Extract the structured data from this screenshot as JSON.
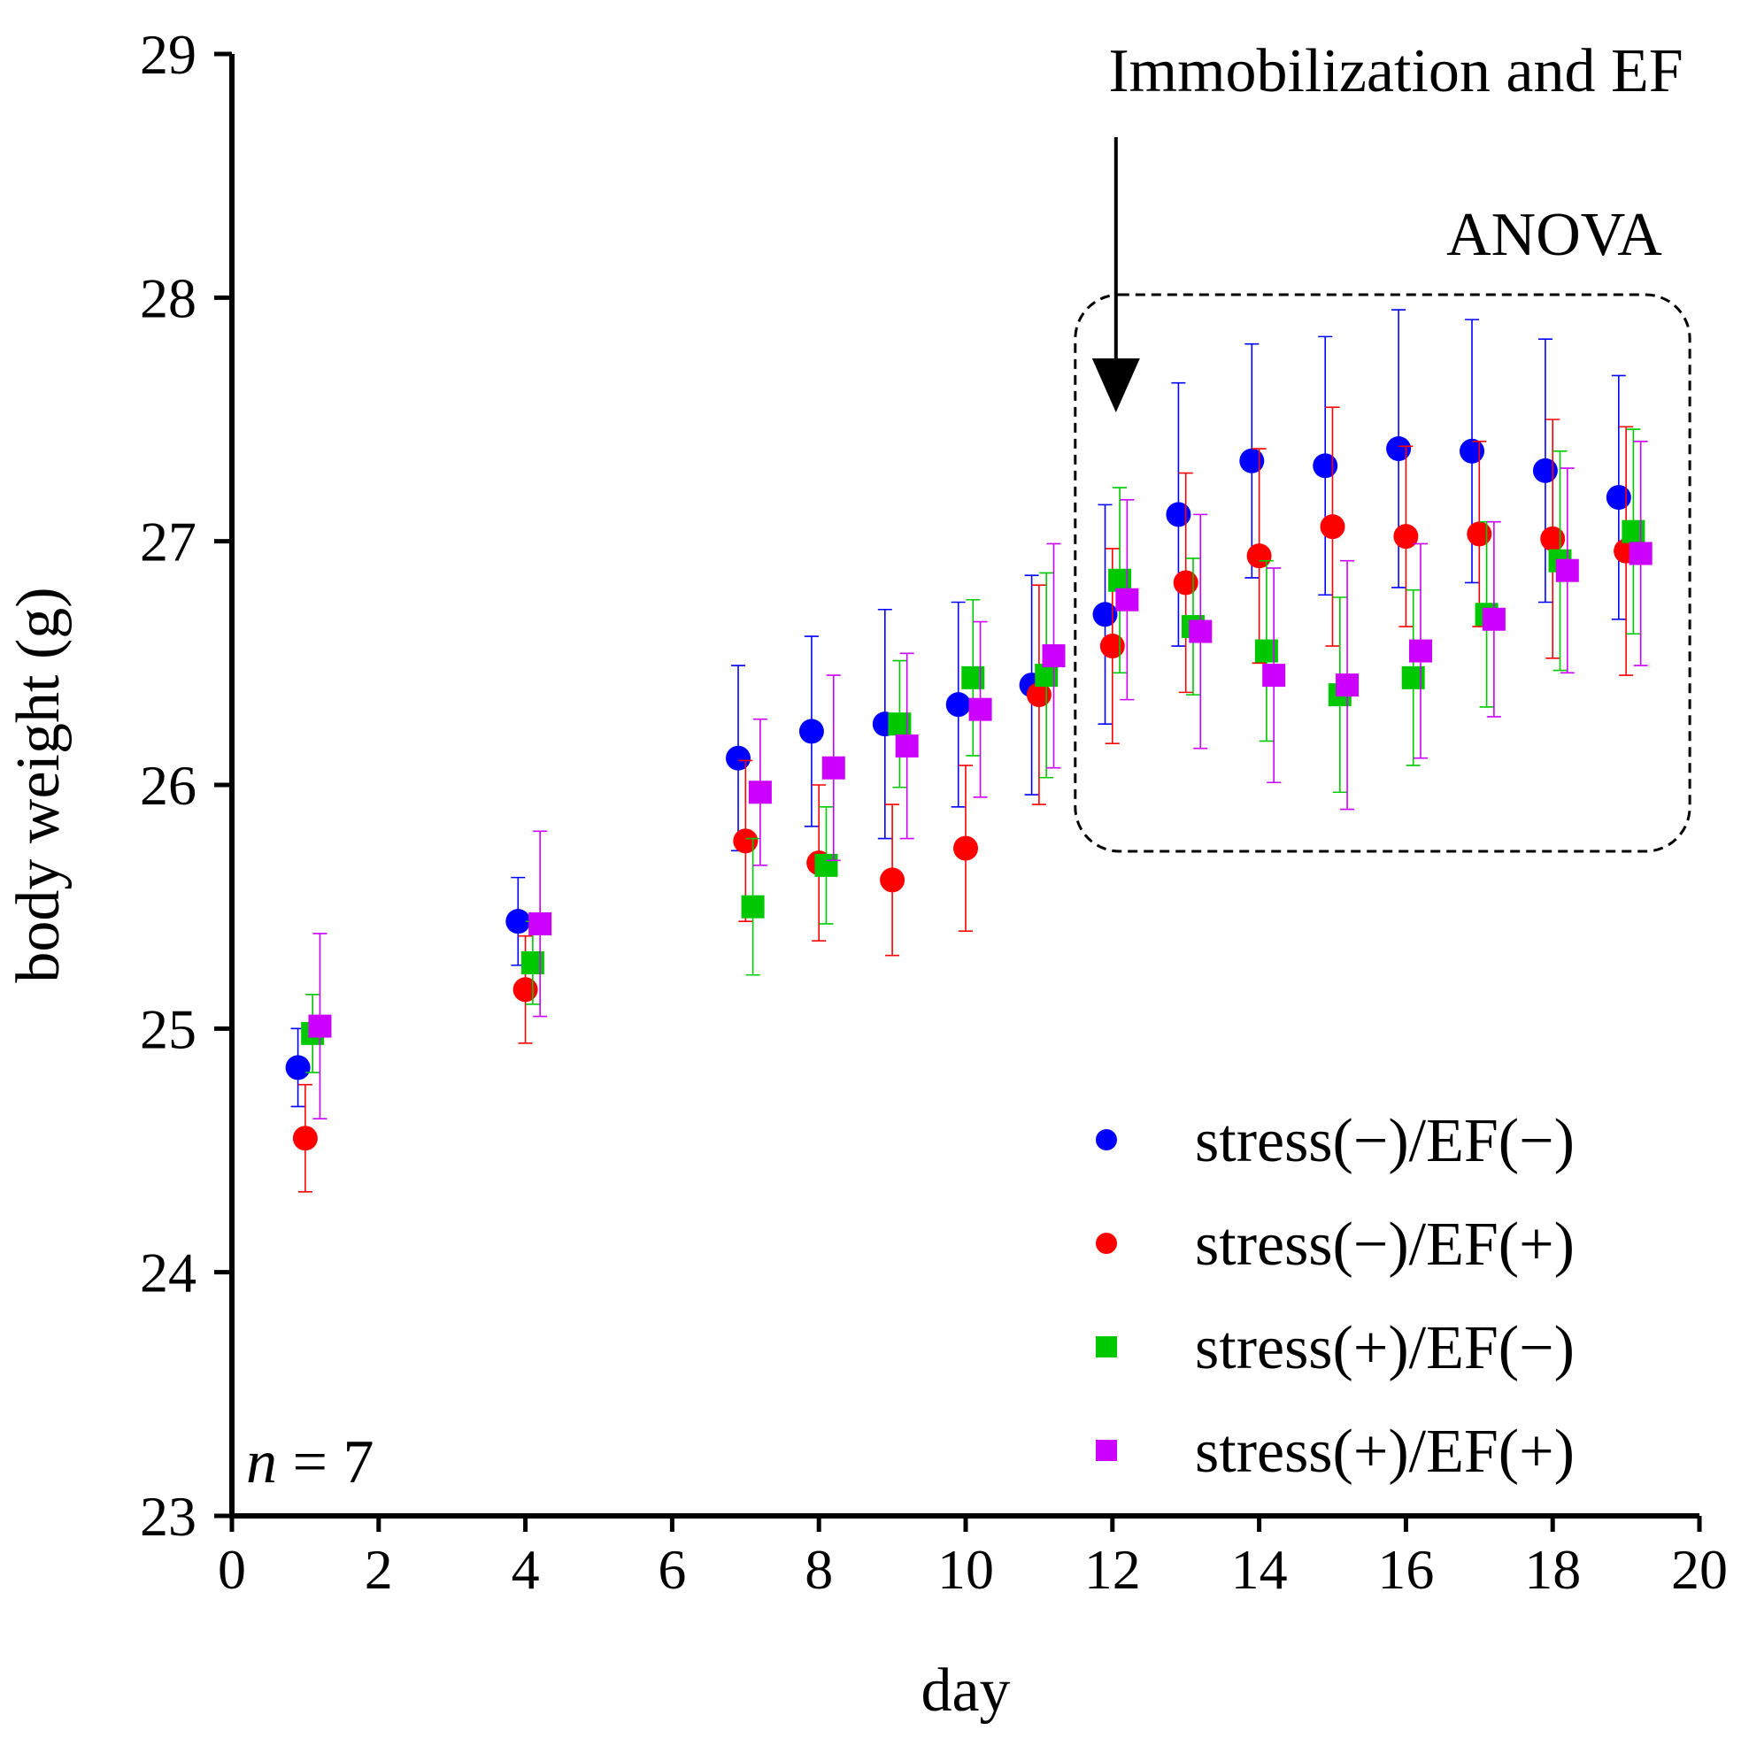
{
  "chart_data": {
    "type": "scatter",
    "title": "",
    "xlabel": "day",
    "ylabel": "body weight (g)",
    "xlim": [
      0,
      20
    ],
    "ylim": [
      23,
      29
    ],
    "xticks": [
      0,
      2,
      4,
      6,
      8,
      10,
      12,
      14,
      16,
      18,
      20
    ],
    "yticks": [
      23,
      24,
      25,
      26,
      27,
      28,
      29
    ],
    "grid": false,
    "legend_position": "bottom-right",
    "annotations": {
      "arrow_label": "Immobilization and EF",
      "arrow_day": 12,
      "box_label": "ANOVA",
      "box_days": [
        12,
        19
      ],
      "n_label_var": "n",
      "n_label_rest": " = 7"
    },
    "series": [
      {
        "name": "stress(−)/EF(−)",
        "color": "#0000ff",
        "marker": "circle",
        "offset": -0.1,
        "x": [
          1,
          4,
          7,
          8,
          9,
          10,
          11,
          12,
          13,
          14,
          15,
          16,
          17,
          18,
          19
        ],
        "y": [
          24.84,
          25.44,
          26.11,
          26.22,
          26.25,
          26.33,
          26.41,
          26.7,
          27.11,
          27.33,
          27.31,
          27.38,
          27.37,
          27.29,
          27.18
        ],
        "err": [
          0.16,
          0.18,
          0.38,
          0.39,
          0.47,
          0.42,
          0.45,
          0.45,
          0.54,
          0.48,
          0.53,
          0.57,
          0.54,
          0.54,
          0.5
        ]
      },
      {
        "name": "stress(−)/EF(+)",
        "color": "#ff0000",
        "marker": "circle",
        "offset": 0,
        "x": [
          1,
          4,
          7,
          8,
          9,
          10,
          11,
          12,
          13,
          14,
          15,
          16,
          17,
          18,
          19
        ],
        "y": [
          24.55,
          25.16,
          25.77,
          25.68,
          25.61,
          25.74,
          26.37,
          26.57,
          26.83,
          26.94,
          27.06,
          27.02,
          27.03,
          27.01,
          26.96
        ],
        "err": [
          0.22,
          0.22,
          0.33,
          0.32,
          0.31,
          0.34,
          0.45,
          0.4,
          0.45,
          0.44,
          0.49,
          0.37,
          0.38,
          0.49,
          0.51
        ]
      },
      {
        "name": "stress(+)/EF(−)",
        "color": "#00c800",
        "marker": "square",
        "offset": 0.1,
        "x": [
          1,
          4,
          7,
          8,
          9,
          10,
          11,
          12,
          13,
          14,
          15,
          16,
          17,
          18,
          19
        ],
        "y": [
          24.98,
          25.27,
          25.5,
          25.67,
          26.25,
          26.44,
          26.45,
          26.84,
          26.65,
          26.55,
          26.37,
          26.44,
          26.7,
          26.92,
          27.04
        ],
        "err": [
          0.16,
          0.17,
          0.28,
          0.24,
          0.26,
          0.32,
          0.42,
          0.38,
          0.28,
          0.37,
          0.4,
          0.36,
          0.38,
          0.45,
          0.42
        ]
      },
      {
        "name": "stress(+)/EF(+)",
        "color": "#cc00ff",
        "marker": "square",
        "offset": 0.2,
        "x": [
          1,
          4,
          7,
          8,
          9,
          10,
          11,
          12,
          13,
          14,
          15,
          16,
          17,
          18,
          19
        ],
        "y": [
          25.01,
          25.43,
          25.97,
          26.07,
          26.16,
          26.31,
          26.53,
          26.76,
          26.63,
          26.45,
          26.41,
          26.55,
          26.68,
          26.88,
          26.95
        ],
        "err": [
          0.38,
          0.38,
          0.3,
          0.38,
          0.38,
          0.36,
          0.46,
          0.41,
          0.48,
          0.44,
          0.51,
          0.44,
          0.4,
          0.42,
          0.46
        ]
      }
    ]
  }
}
